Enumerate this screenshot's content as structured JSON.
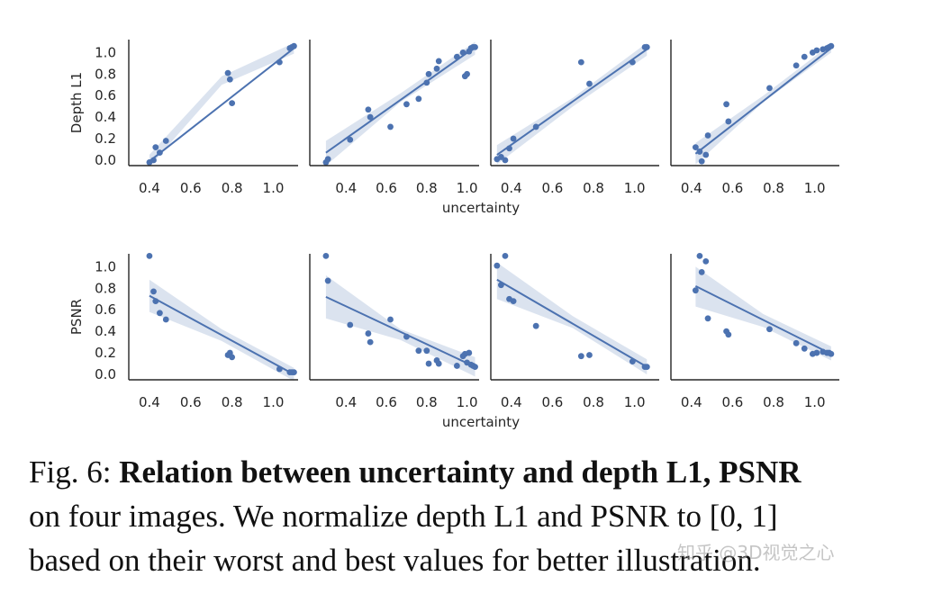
{
  "chart_data": [
    {
      "type": "scatter",
      "row": "top",
      "panel": 1,
      "ylabel": "Depth L1",
      "xlabel": "",
      "xticks": [
        "0.4",
        "0.6",
        "0.8",
        "1.0"
      ],
      "yticks": [
        "0.0",
        "0.2",
        "0.4",
        "0.6",
        "0.8",
        "1.0"
      ],
      "xlim": [
        0.3,
        1.12
      ],
      "ylim": [
        -0.05,
        1.12
      ],
      "points": [
        [
          0.4,
          -0.02
        ],
        [
          0.42,
          0.0
        ],
        [
          0.43,
          0.12
        ],
        [
          0.45,
          0.07
        ],
        [
          0.48,
          0.18
        ],
        [
          0.78,
          0.81
        ],
        [
          0.79,
          0.75
        ],
        [
          0.8,
          0.53
        ],
        [
          1.03,
          0.91
        ],
        [
          1.08,
          1.04
        ],
        [
          1.09,
          1.05
        ],
        [
          1.1,
          1.06
        ]
      ],
      "fit": {
        "x": [
          0.4,
          1.1
        ],
        "y": [
          -0.01,
          1.04
        ]
      },
      "band": {
        "lower": [
          -0.06,
          0.7,
          0.99
        ],
        "upper": [
          0.05,
          0.78,
          1.09
        ],
        "x": [
          0.4,
          0.75,
          1.1
        ]
      }
    },
    {
      "type": "scatter",
      "row": "top",
      "panel": 2,
      "xlabel": "uncertainty",
      "xticks": [
        "0.4",
        "0.6",
        "0.8",
        "1.0"
      ],
      "yticks": [],
      "xlim": [
        0.22,
        1.06
      ],
      "ylim": [
        -0.05,
        1.12
      ],
      "points": [
        [
          0.3,
          -0.02
        ],
        [
          0.31,
          0.01
        ],
        [
          0.42,
          0.19
        ],
        [
          0.51,
          0.47
        ],
        [
          0.52,
          0.4
        ],
        [
          0.62,
          0.31
        ],
        [
          0.7,
          0.52
        ],
        [
          0.76,
          0.57
        ],
        [
          0.8,
          0.72
        ],
        [
          0.81,
          0.8
        ],
        [
          0.85,
          0.85
        ],
        [
          0.86,
          0.92
        ],
        [
          0.95,
          0.96
        ],
        [
          0.98,
          1.0
        ],
        [
          0.99,
          0.78
        ],
        [
          1.0,
          0.8
        ],
        [
          1.01,
          1.01
        ],
        [
          1.02,
          1.04
        ],
        [
          1.03,
          1.05
        ],
        [
          1.04,
          1.05
        ]
      ],
      "fit": {
        "x": [
          0.3,
          1.04
        ],
        "y": [
          0.07,
          1.05
        ]
      },
      "band": {
        "lower": [
          -0.05,
          0.54,
          0.98
        ],
        "upper": [
          0.18,
          0.62,
          1.1
        ],
        "x": [
          0.3,
          0.67,
          1.04
        ]
      }
    },
    {
      "type": "scatter",
      "row": "top",
      "panel": 3,
      "xlabel": "",
      "xticks": [
        "0.4",
        "0.6",
        "0.8",
        "1.0"
      ],
      "yticks": [],
      "xlim": [
        0.3,
        1.12
      ],
      "ylim": [
        -0.05,
        1.12
      ],
      "points": [
        [
          0.33,
          0.01
        ],
        [
          0.35,
          0.03
        ],
        [
          0.37,
          0.0
        ],
        [
          0.39,
          0.11
        ],
        [
          0.41,
          0.2
        ],
        [
          0.52,
          0.31
        ],
        [
          0.74,
          0.91
        ],
        [
          0.78,
          0.71
        ],
        [
          0.99,
          0.91
        ],
        [
          1.05,
          1.05
        ],
        [
          1.06,
          1.05
        ]
      ],
      "fit": {
        "x": [
          0.33,
          1.06
        ],
        "y": [
          0.05,
          1.03
        ]
      },
      "band": {
        "lower": [
          -0.04,
          0.5,
          0.97
        ],
        "upper": [
          0.14,
          0.58,
          1.09
        ],
        "x": [
          0.33,
          0.7,
          1.06
        ]
      }
    },
    {
      "type": "scatter",
      "row": "top",
      "panel": 4,
      "xlabel": "",
      "xticks": [
        "0.4",
        "0.6",
        "0.8",
        "1.0"
      ],
      "yticks": [],
      "xlim": [
        0.3,
        1.12
      ],
      "ylim": [
        -0.05,
        1.12
      ],
      "points": [
        [
          0.42,
          0.12
        ],
        [
          0.44,
          0.08
        ],
        [
          0.45,
          -0.01
        ],
        [
          0.47,
          0.05
        ],
        [
          0.48,
          0.23
        ],
        [
          0.57,
          0.52
        ],
        [
          0.58,
          0.36
        ],
        [
          0.78,
          0.67
        ],
        [
          0.91,
          0.88
        ],
        [
          0.95,
          0.96
        ],
        [
          0.99,
          1.0
        ],
        [
          1.01,
          1.02
        ],
        [
          1.04,
          1.03
        ],
        [
          1.06,
          1.04
        ],
        [
          1.07,
          1.05
        ],
        [
          1.08,
          1.06
        ]
      ],
      "fit": {
        "x": [
          0.42,
          1.08
        ],
        "y": [
          0.06,
          1.04
        ]
      },
      "band": {
        "lower": [
          -0.04,
          0.54,
          1.0
        ],
        "upper": [
          0.16,
          0.6,
          1.08
        ],
        "x": [
          0.42,
          0.75,
          1.08
        ]
      }
    },
    {
      "type": "scatter",
      "row": "bottom",
      "panel": 1,
      "ylabel": "PSNR",
      "xlabel": "",
      "xticks": [
        "0.4",
        "0.6",
        "0.8",
        "1.0"
      ],
      "yticks": [
        "0.0",
        "0.2",
        "0.4",
        "0.6",
        "0.8",
        "1.0"
      ],
      "xlim": [
        0.3,
        1.12
      ],
      "ylim": [
        -0.05,
        1.12
      ],
      "points": [
        [
          0.4,
          1.1
        ],
        [
          0.42,
          0.77
        ],
        [
          0.43,
          0.68
        ],
        [
          0.45,
          0.57
        ],
        [
          0.48,
          0.51
        ],
        [
          0.78,
          0.18
        ],
        [
          0.79,
          0.2
        ],
        [
          0.8,
          0.16
        ],
        [
          1.03,
          0.05
        ],
        [
          1.08,
          0.02
        ],
        [
          1.09,
          0.02
        ],
        [
          1.1,
          0.02
        ]
      ],
      "fit": {
        "x": [
          0.4,
          1.1
        ],
        "y": [
          0.73,
          0.0
        ]
      },
      "band": {
        "lower": [
          0.58,
          0.31,
          -0.06
        ],
        "upper": [
          0.88,
          0.42,
          0.06
        ],
        "x": [
          0.4,
          0.75,
          1.1
        ]
      }
    },
    {
      "type": "scatter",
      "row": "bottom",
      "panel": 2,
      "xlabel": "uncertainty",
      "xticks": [
        "0.4",
        "0.6",
        "0.8",
        "1.0"
      ],
      "yticks": [],
      "xlim": [
        0.22,
        1.06
      ],
      "ylim": [
        -0.05,
        1.12
      ],
      "points": [
        [
          0.3,
          1.1
        ],
        [
          0.31,
          0.87
        ],
        [
          0.42,
          0.46
        ],
        [
          0.51,
          0.38
        ],
        [
          0.52,
          0.3
        ],
        [
          0.62,
          0.51
        ],
        [
          0.7,
          0.35
        ],
        [
          0.76,
          0.22
        ],
        [
          0.8,
          0.22
        ],
        [
          0.81,
          0.1
        ],
        [
          0.85,
          0.13
        ],
        [
          0.86,
          0.1
        ],
        [
          0.95,
          0.08
        ],
        [
          0.98,
          0.17
        ],
        [
          0.99,
          0.19
        ],
        [
          1.0,
          0.11
        ],
        [
          1.01,
          0.2
        ],
        [
          1.02,
          0.09
        ],
        [
          1.03,
          0.08
        ],
        [
          1.04,
          0.07
        ]
      ],
      "fit": {
        "x": [
          0.3,
          1.04
        ],
        "y": [
          0.72,
          0.07
        ]
      },
      "band": {
        "lower": [
          0.52,
          0.32,
          -0.02
        ],
        "upper": [
          0.92,
          0.42,
          0.16
        ],
        "x": [
          0.3,
          0.67,
          1.04
        ]
      }
    },
    {
      "type": "scatter",
      "row": "bottom",
      "panel": 3,
      "xlabel": "",
      "xticks": [
        "0.4",
        "0.6",
        "0.8",
        "1.0"
      ],
      "yticks": [],
      "xlim": [
        0.3,
        1.12
      ],
      "ylim": [
        -0.05,
        1.12
      ],
      "points": [
        [
          0.33,
          1.01
        ],
        [
          0.35,
          0.83
        ],
        [
          0.37,
          1.1
        ],
        [
          0.39,
          0.7
        ],
        [
          0.41,
          0.68
        ],
        [
          0.52,
          0.45
        ],
        [
          0.74,
          0.17
        ],
        [
          0.78,
          0.18
        ],
        [
          0.99,
          0.12
        ],
        [
          1.05,
          0.07
        ],
        [
          1.06,
          0.07
        ]
      ],
      "fit": {
        "x": [
          0.33,
          1.06
        ],
        "y": [
          0.88,
          0.07
        ]
      },
      "band": {
        "lower": [
          0.7,
          0.43,
          0.0
        ],
        "upper": [
          1.04,
          0.54,
          0.14
        ],
        "x": [
          0.33,
          0.7,
          1.06
        ]
      }
    },
    {
      "type": "scatter",
      "row": "bottom",
      "panel": 4,
      "xlabel": "",
      "xticks": [
        "0.4",
        "0.6",
        "0.8",
        "1.0"
      ],
      "yticks": [],
      "xlim": [
        0.3,
        1.12
      ],
      "ylim": [
        -0.05,
        1.12
      ],
      "points": [
        [
          0.42,
          0.78
        ],
        [
          0.44,
          1.1
        ],
        [
          0.45,
          0.95
        ],
        [
          0.47,
          1.05
        ],
        [
          0.48,
          0.52
        ],
        [
          0.57,
          0.4
        ],
        [
          0.58,
          0.37
        ],
        [
          0.78,
          0.42
        ],
        [
          0.91,
          0.29
        ],
        [
          0.95,
          0.24
        ],
        [
          0.99,
          0.19
        ],
        [
          1.01,
          0.2
        ],
        [
          1.04,
          0.21
        ],
        [
          1.06,
          0.2
        ],
        [
          1.07,
          0.2
        ],
        [
          1.08,
          0.19
        ]
      ],
      "fit": {
        "x": [
          0.42,
          1.08
        ],
        "y": [
          0.82,
          0.19
        ]
      },
      "band": {
        "lower": [
          0.63,
          0.44,
          0.13
        ],
        "upper": [
          1.0,
          0.56,
          0.26
        ],
        "x": [
          0.42,
          0.75,
          1.08
        ]
      }
    }
  ],
  "caption": {
    "fig_label": "Fig. 6: ",
    "bold_title": "Relation between uncertainty and depth L1, PSNR",
    "text_part1": "on four images. We normalize depth L1 and PSNR to ",
    "math": "[0, 1]",
    "text_part2": "based on their worst and best values for better illustration."
  },
  "watermark": "知乎 @3D视觉之心",
  "colors": {
    "series": "#4c72b0",
    "band": "rgba(76,114,176,0.2)",
    "axis": "#262626"
  }
}
